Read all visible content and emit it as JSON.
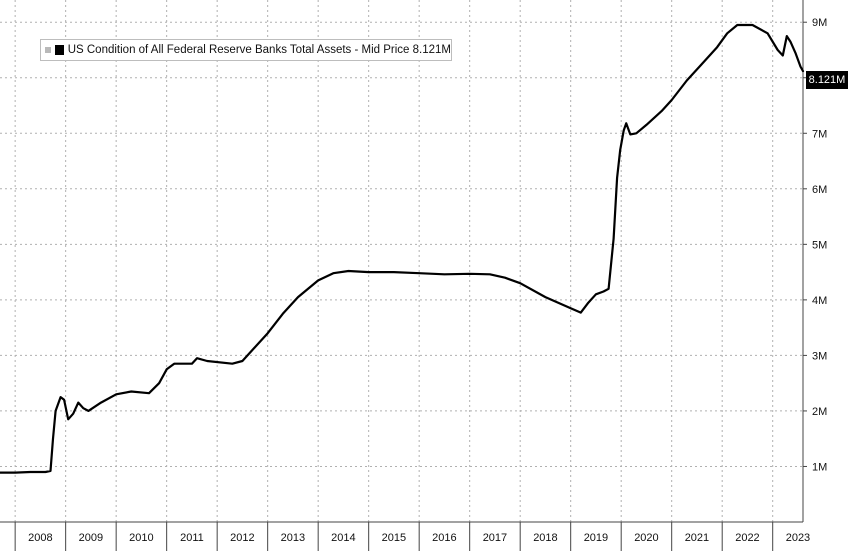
{
  "chart_data": {
    "type": "line",
    "legend": {
      "label": "US Condition of All Federal Reserve Banks Total Assets - Mid Price 8.121M",
      "placement": "top-left"
    },
    "last_value_label": "8.121M",
    "x_tick_labels": [
      "2008",
      "2009",
      "2010",
      "2011",
      "2012",
      "2013",
      "2014",
      "2015",
      "2016",
      "2017",
      "2018",
      "2019",
      "2020",
      "2021",
      "2022",
      "2023"
    ],
    "y_tick_labels": [
      "1M",
      "2M",
      "3M",
      "4M",
      "5M",
      "6M",
      "7M",
      "8M",
      "9M"
    ],
    "ylim": [
      0,
      9.4
    ],
    "xlim": [
      2007.7,
      2023.6
    ],
    "grid": true,
    "colors": {
      "line": "#000000",
      "grid": "#b0b0b0",
      "axis": "#444444"
    },
    "series": [
      {
        "values": [
          [
            2007.7,
            0.89
          ],
          [
            2008.0,
            0.89
          ],
          [
            2008.3,
            0.9
          ],
          [
            2008.6,
            0.9
          ],
          [
            2008.7,
            0.92
          ],
          [
            2008.75,
            1.5
          ],
          [
            2008.8,
            2.0
          ],
          [
            2008.9,
            2.25
          ],
          [
            2008.97,
            2.2
          ],
          [
            2009.05,
            1.85
          ],
          [
            2009.15,
            1.95
          ],
          [
            2009.25,
            2.15
          ],
          [
            2009.35,
            2.05
          ],
          [
            2009.45,
            2.0
          ],
          [
            2009.7,
            2.15
          ],
          [
            2010.0,
            2.3
          ],
          [
            2010.3,
            2.35
          ],
          [
            2010.65,
            2.32
          ],
          [
            2010.85,
            2.5
          ],
          [
            2011.0,
            2.75
          ],
          [
            2011.15,
            2.85
          ],
          [
            2011.5,
            2.85
          ],
          [
            2011.6,
            2.95
          ],
          [
            2011.8,
            2.9
          ],
          [
            2012.3,
            2.85
          ],
          [
            2012.5,
            2.9
          ],
          [
            2012.7,
            3.1
          ],
          [
            2013.0,
            3.4
          ],
          [
            2013.3,
            3.75
          ],
          [
            2013.6,
            4.05
          ],
          [
            2014.0,
            4.35
          ],
          [
            2014.3,
            4.48
          ],
          [
            2014.6,
            4.52
          ],
          [
            2015.0,
            4.5
          ],
          [
            2015.5,
            4.5
          ],
          [
            2016.0,
            4.48
          ],
          [
            2016.5,
            4.46
          ],
          [
            2017.0,
            4.47
          ],
          [
            2017.4,
            4.46
          ],
          [
            2017.7,
            4.4
          ],
          [
            2018.0,
            4.3
          ],
          [
            2018.5,
            4.05
          ],
          [
            2019.0,
            3.85
          ],
          [
            2019.2,
            3.77
          ],
          [
            2019.35,
            3.95
          ],
          [
            2019.5,
            4.1
          ],
          [
            2019.65,
            4.15
          ],
          [
            2019.75,
            4.2
          ],
          [
            2019.85,
            5.1
          ],
          [
            2019.92,
            6.2
          ],
          [
            2019.98,
            6.7
          ],
          [
            2020.05,
            7.05
          ],
          [
            2020.1,
            7.18
          ],
          [
            2020.18,
            6.98
          ],
          [
            2020.3,
            7.0
          ],
          [
            2020.5,
            7.15
          ],
          [
            2020.8,
            7.4
          ],
          [
            2021.0,
            7.6
          ],
          [
            2021.3,
            7.95
          ],
          [
            2021.6,
            8.25
          ],
          [
            2021.9,
            8.55
          ],
          [
            2022.1,
            8.8
          ],
          [
            2022.3,
            8.95
          ],
          [
            2022.6,
            8.95
          ],
          [
            2022.9,
            8.8
          ],
          [
            2023.1,
            8.5
          ],
          [
            2023.2,
            8.4
          ],
          [
            2023.28,
            8.75
          ],
          [
            2023.35,
            8.65
          ],
          [
            2023.45,
            8.45
          ],
          [
            2023.55,
            8.2
          ],
          [
            2023.6,
            8.12
          ]
        ]
      }
    ]
  }
}
